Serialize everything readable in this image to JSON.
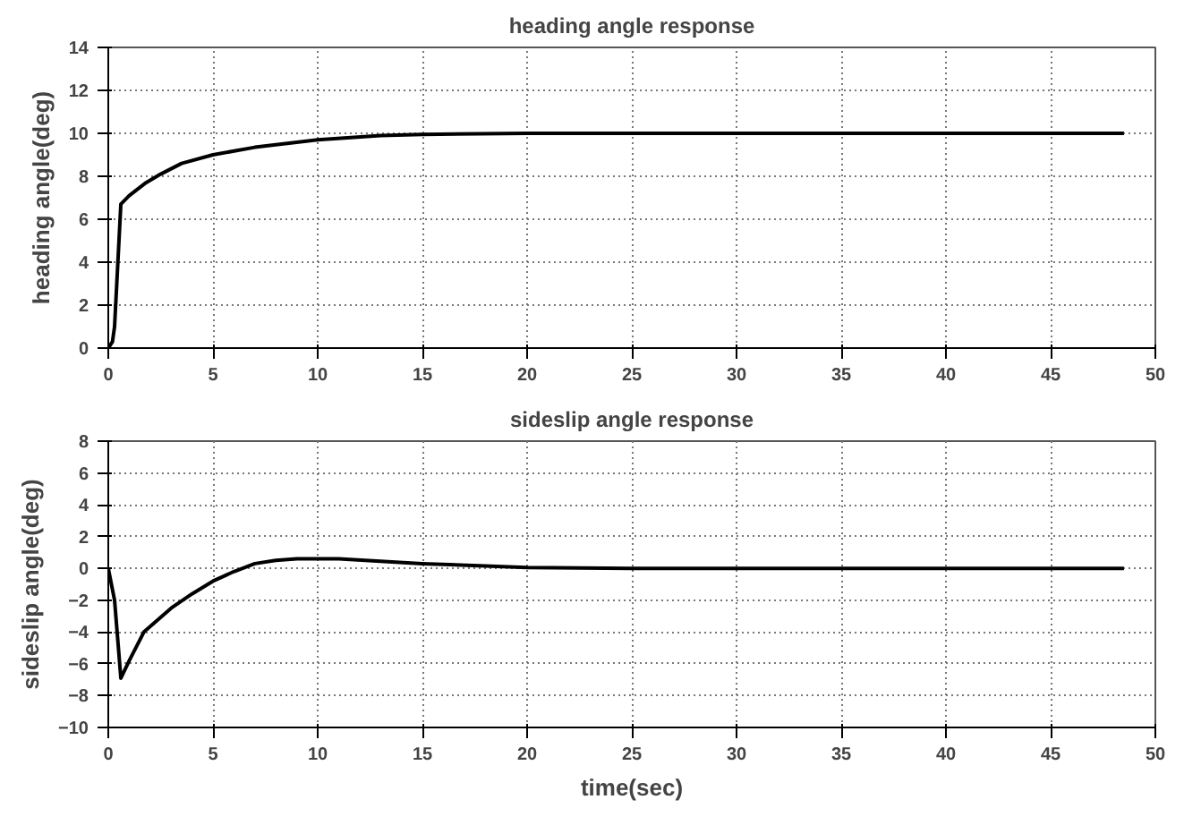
{
  "chart_data": [
    {
      "type": "line",
      "title": "heading angle response",
      "ylabel": "heading angle(deg)",
      "xlim": [
        0,
        50
      ],
      "ylim": [
        0,
        14
      ],
      "xticks": [
        0,
        5,
        10,
        15,
        20,
        25,
        30,
        35,
        40,
        45,
        50
      ],
      "yticks": [
        0,
        2,
        4,
        6,
        8,
        10,
        12,
        14
      ],
      "grid": true,
      "marker": "none",
      "line_style": "solid",
      "series": [
        {
          "color": "#000000",
          "x": [
            0,
            0.2,
            0.3,
            0.6,
            1,
            1.8,
            2.5,
            3.5,
            5,
            7,
            10,
            13,
            15,
            20,
            48.5
          ],
          "values": [
            0,
            0.3,
            1,
            6.7,
            7.1,
            7.7,
            8.1,
            8.6,
            9,
            9.35,
            9.7,
            9.9,
            9.95,
            10,
            10
          ]
        }
      ]
    },
    {
      "type": "line",
      "title": "sideslip angle response",
      "xlabel": "time(sec)",
      "ylabel": "sideslip angle(deg)",
      "xlim": [
        0,
        50
      ],
      "ylim": [
        -10,
        8
      ],
      "xticks": [
        0,
        5,
        10,
        15,
        20,
        25,
        30,
        35,
        40,
        45,
        50
      ],
      "yticks": [
        -10,
        -8,
        -6,
        -4,
        -2,
        0,
        2,
        4,
        6,
        8
      ],
      "grid": true,
      "marker": "none",
      "line_style": "solid",
      "series": [
        {
          "color": "#000000",
          "x": [
            0,
            0.3,
            0.6,
            1,
            1.7,
            3,
            4,
            5,
            6,
            7,
            8,
            9,
            11,
            13,
            15,
            18,
            20,
            25,
            48.5
          ],
          "values": [
            0,
            -2,
            -6.9,
            -5.8,
            -4,
            -2.5,
            -1.6,
            -0.8,
            -0.2,
            0.3,
            0.5,
            0.6,
            0.6,
            0.45,
            0.3,
            0.15,
            0.05,
            0,
            0
          ]
        }
      ]
    }
  ]
}
